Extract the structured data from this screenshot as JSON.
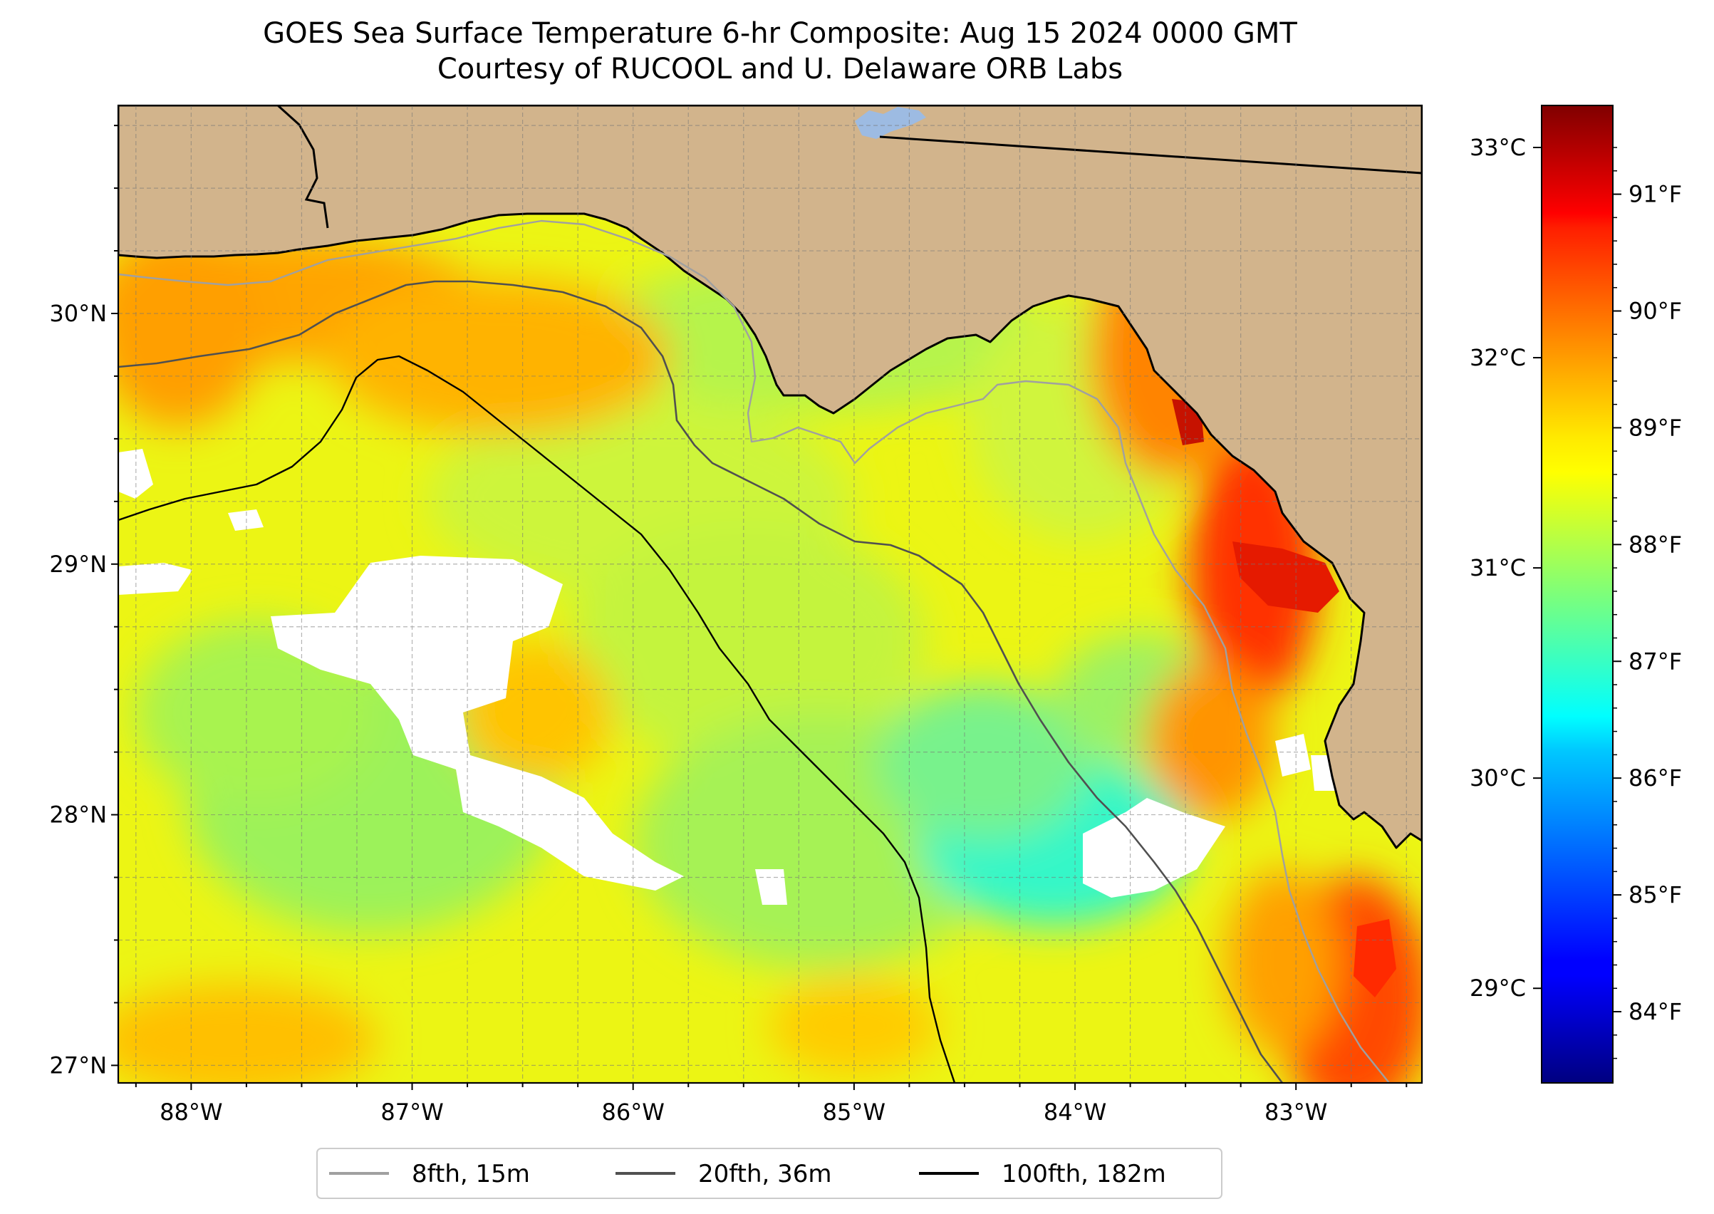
{
  "title": "GOES Sea Surface Temperature 6-hr Composite: Aug 15 2024 0000 GMT",
  "subtitle": "Courtesy of RUCOOL and U. Delaware ORB Labs",
  "map": {
    "lon_range": [
      -88.33,
      -82.43
    ],
    "lat_range": [
      26.93,
      30.83
    ],
    "lon_ticks": [
      {
        "value": -88,
        "label": "88°W"
      },
      {
        "value": -87,
        "label": "87°W"
      },
      {
        "value": -86,
        "label": "86°W"
      },
      {
        "value": -85,
        "label": "85°W"
      },
      {
        "value": -84,
        "label": "84°W"
      },
      {
        "value": -83,
        "label": "83°W"
      }
    ],
    "lat_ticks": [
      {
        "value": 30,
        "label": "30°N"
      },
      {
        "value": 29,
        "label": "29°N"
      },
      {
        "value": 28,
        "label": "28°N"
      },
      {
        "value": 27,
        "label": "27°N"
      }
    ],
    "gridlines": true,
    "colors": {
      "land": "#d2b48c",
      "lake": "#9dbbe2",
      "no_data": "#ffffff",
      "isobath_8fth": "#a0a0a0",
      "isobath_20fth": "#505050",
      "isobath_100fth": "#000000"
    }
  },
  "colorbar": {
    "colormap": "jet",
    "celsius_ticks": [
      {
        "value": 33,
        "label": "33°C"
      },
      {
        "value": 32,
        "label": "32°C"
      },
      {
        "value": 31,
        "label": "31°C"
      },
      {
        "value": 30,
        "label": "30°C"
      },
      {
        "value": 29,
        "label": "29°C"
      }
    ],
    "fahrenheit_ticks": [
      {
        "value": 91,
        "label": "91°F"
      },
      {
        "value": 90,
        "label": "90°F"
      },
      {
        "value": 89,
        "label": "89°F"
      },
      {
        "value": 88,
        "label": "88°F"
      },
      {
        "value": 87,
        "label": "87°F"
      },
      {
        "value": 86,
        "label": "86°F"
      },
      {
        "value": 85,
        "label": "85°F"
      },
      {
        "value": 84,
        "label": "84°F"
      }
    ]
  },
  "legend": {
    "location": "bottom-center",
    "entries": [
      {
        "label": "8fth, 15m",
        "color": "#a0a0a0"
      },
      {
        "label": "20fth, 36m",
        "color": "#505050"
      },
      {
        "label": "100fth, 182m",
        "color": "#000000"
      }
    ]
  }
}
